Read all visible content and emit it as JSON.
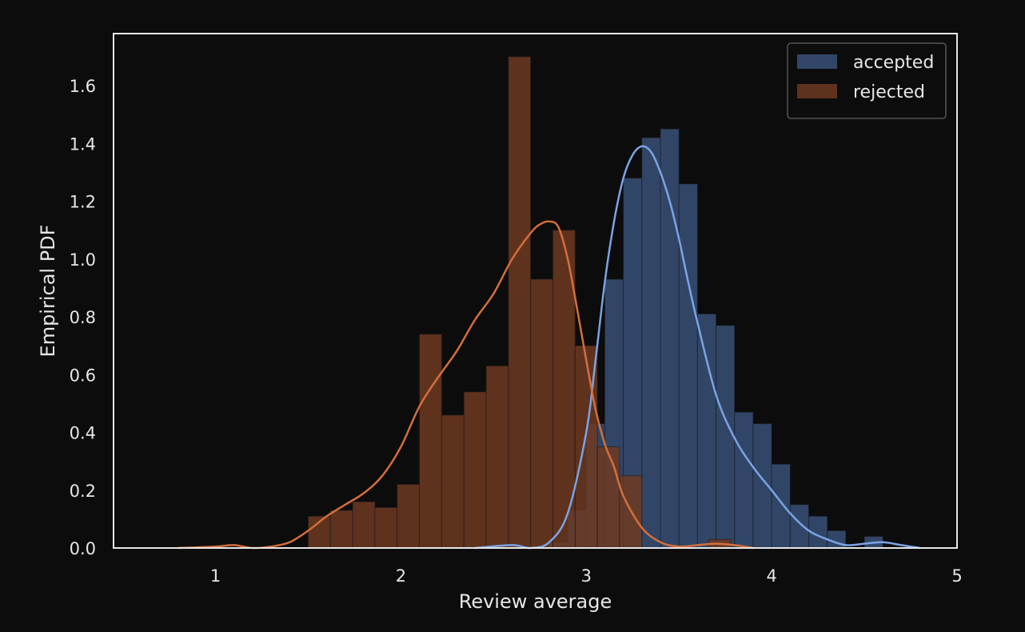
{
  "chart_data": {
    "type": "bar",
    "subtype": "histogram-with-kde",
    "title": "",
    "xlabel": "Review average",
    "ylabel": "Empirical PDF",
    "xlim": [
      0.45,
      5.0
    ],
    "ylim": [
      0.0,
      1.78
    ],
    "x_ticks": [
      1,
      2,
      3,
      4,
      5
    ],
    "y_ticks": [
      0.0,
      0.2,
      0.4,
      0.6,
      0.8,
      1.0,
      1.2,
      1.4,
      1.6
    ],
    "y_tick_labels": [
      "0.0",
      "0.2",
      "0.4",
      "0.6",
      "0.8",
      "1.0",
      "1.2",
      "1.4",
      "1.6"
    ],
    "grid": false,
    "legend_position": "top-right",
    "colors": {
      "background": "#0c0c0c",
      "axes_frame": "#e6e6e6",
      "accepted_bar": "#3d5a85",
      "accepted_line": "#7aa3e5",
      "rejected_bar": "#6e3a22",
      "rejected_line": "#d46e3c",
      "text": "#e6e6e6"
    },
    "series": [
      {
        "name": "accepted",
        "color": "#3d5a85",
        "line_color": "#7aa3e5",
        "bar_alpha": 0.75,
        "bin_width": 0.1,
        "bin_starts": [
          2.8,
          2.9,
          3.0,
          3.1,
          3.2,
          3.3,
          3.4,
          3.5,
          3.6,
          3.7,
          3.8,
          3.9,
          4.0,
          4.1,
          4.2,
          4.3,
          4.4,
          4.5,
          4.6
        ],
        "values": [
          0.02,
          0.13,
          0.43,
          0.93,
          1.28,
          1.42,
          1.45,
          1.26,
          0.81,
          0.77,
          0.47,
          0.43,
          0.29,
          0.15,
          0.11,
          0.06,
          0.0,
          0.04,
          0.0
        ],
        "kde": {
          "x": [
            2.4,
            2.6,
            2.7,
            2.8,
            2.9,
            3.0,
            3.05,
            3.1,
            3.15,
            3.2,
            3.25,
            3.3,
            3.35,
            3.4,
            3.45,
            3.5,
            3.55,
            3.6,
            3.7,
            3.8,
            3.9,
            4.0,
            4.1,
            4.2,
            4.3,
            4.4,
            4.5,
            4.6,
            4.7,
            4.8
          ],
          "y": [
            0.0,
            0.01,
            0.0,
            0.02,
            0.12,
            0.4,
            0.65,
            0.92,
            1.13,
            1.28,
            1.36,
            1.39,
            1.37,
            1.3,
            1.2,
            1.07,
            0.92,
            0.78,
            0.53,
            0.38,
            0.28,
            0.2,
            0.12,
            0.06,
            0.03,
            0.01,
            0.015,
            0.02,
            0.01,
            0.0
          ]
        }
      },
      {
        "name": "rejected",
        "color": "#6e3a22",
        "line_color": "#d46e3c",
        "bar_alpha": 0.85,
        "bin_width": 0.12,
        "bin_starts": [
          1.5,
          1.62,
          1.74,
          1.86,
          1.98,
          2.1,
          2.22,
          2.34,
          2.46,
          2.58,
          2.7,
          2.82,
          2.94,
          3.06,
          3.18,
          3.3,
          3.42,
          3.54,
          3.66
        ],
        "values": [
          0.11,
          0.13,
          0.16,
          0.14,
          0.22,
          0.74,
          0.46,
          0.54,
          0.63,
          1.7,
          0.93,
          1.1,
          0.7,
          0.35,
          0.25,
          0.0,
          0.0,
          0.0,
          0.03
        ],
        "kde": {
          "x": [
            0.8,
            1.0,
            1.1,
            1.2,
            1.3,
            1.4,
            1.5,
            1.6,
            1.7,
            1.8,
            1.9,
            2.0,
            2.1,
            2.2,
            2.3,
            2.4,
            2.5,
            2.6,
            2.7,
            2.75,
            2.8,
            2.85,
            2.9,
            2.95,
            3.0,
            3.05,
            3.1,
            3.15,
            3.2,
            3.3,
            3.4,
            3.5,
            3.6,
            3.7,
            3.8,
            3.9
          ],
          "y": [
            0.0,
            0.005,
            0.01,
            0.0,
            0.005,
            0.02,
            0.06,
            0.11,
            0.15,
            0.19,
            0.25,
            0.35,
            0.49,
            0.59,
            0.68,
            0.79,
            0.88,
            1.0,
            1.09,
            1.12,
            1.13,
            1.11,
            1.0,
            0.83,
            0.65,
            0.48,
            0.36,
            0.28,
            0.18,
            0.07,
            0.02,
            0.005,
            0.01,
            0.015,
            0.01,
            0.0
          ]
        }
      }
    ]
  }
}
